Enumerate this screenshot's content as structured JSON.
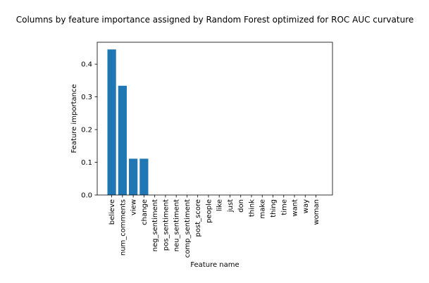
{
  "chart_data": {
    "type": "bar",
    "title": "Columns by feature importance assigned by Random Forest optimized for ROC AUC curvature",
    "xlabel": "Feature name",
    "ylabel": "Feature importance",
    "categories": [
      "believe",
      "num_comments",
      "view",
      "change",
      "neg_sentiment",
      "pos_sentiment",
      "neu_sentiment",
      "comp_sentiment",
      "post_score",
      "people",
      "like",
      "just",
      "don",
      "think",
      "make",
      "thing",
      "time",
      "want",
      "way",
      "woman"
    ],
    "values": [
      0.445,
      0.334,
      0.111,
      0.111,
      0,
      0,
      0,
      0,
      0,
      0,
      0,
      0,
      0,
      0,
      0,
      0,
      0,
      0,
      0,
      0
    ],
    "yticks": [
      0.0,
      0.1,
      0.2,
      0.3,
      0.4
    ],
    "ytick_labels": [
      "0.0",
      "0.1",
      "0.2",
      "0.3",
      "0.4"
    ],
    "ylim": [
      0,
      0.467
    ],
    "bar_color": "#1f77b4",
    "grid": false,
    "legend": "none"
  }
}
